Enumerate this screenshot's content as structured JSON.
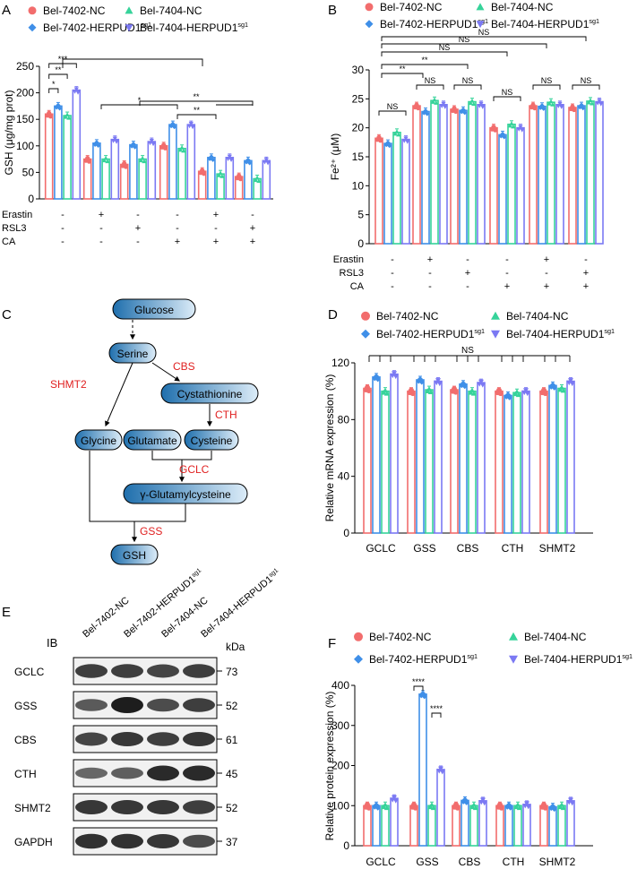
{
  "colors": {
    "c1": "#f26d6d",
    "c2": "#3f8fe8",
    "c3": "#36d39a",
    "c4": "#7b79f3",
    "sig": "#000000",
    "flowRed": "#e02020"
  },
  "groups": [
    "Bel-7402-NC",
    "Bel-7402-HERPUD1",
    "Bel-7404-NC",
    "Bel-7404-HERPUD1"
  ],
  "sup": "sg1",
  "pm": [
    "+",
    "-"
  ],
  "panelA": {
    "letter": "A",
    "ylabel": "GSH (μg/mg prot)",
    "rows": [
      "Erastin",
      "RSL3",
      "CA"
    ],
    "conds": [
      [
        "-",
        "-",
        "-"
      ],
      [
        "+",
        "-",
        "-"
      ],
      [
        "-",
        "+",
        "-"
      ],
      [
        "-",
        "-",
        "+"
      ],
      [
        "+",
        "-",
        "+"
      ],
      [
        "-",
        "+",
        "+"
      ]
    ],
    "sigLabels": [
      "*",
      "**",
      "***",
      "*",
      "**",
      "**"
    ],
    "chart_data": {
      "type": "bar",
      "ylim": [
        0,
        250
      ],
      "ticks": [
        0,
        50,
        100,
        150,
        200,
        250
      ],
      "means": [
        [
          160,
          175,
          157,
          205
        ],
        [
          75,
          105,
          75,
          112
        ],
        [
          65,
          102,
          75,
          108
        ],
        [
          100,
          140,
          95,
          140
        ],
        [
          52,
          78,
          47,
          78
        ],
        [
          42,
          72,
          38,
          72
        ]
      ]
    }
  },
  "panelB": {
    "letter": "B",
    "ylabel": "Fe²⁺ (μM)",
    "rows": [
      "Erastin",
      "RSL3",
      "CA"
    ],
    "conds": [
      [
        "-",
        "-",
        "-"
      ],
      [
        "+",
        "-",
        "-"
      ],
      [
        "-",
        "+",
        "-"
      ],
      [
        "-",
        "-",
        "+"
      ],
      [
        "+",
        "-",
        "+"
      ],
      [
        "-",
        "+",
        "+"
      ]
    ],
    "sigLabels": [
      "NS",
      "NS",
      "NS",
      "NS",
      "NS",
      "NS",
      "**",
      "**",
      "NS",
      "NS",
      "NS"
    ],
    "chart_data": {
      "type": "bar",
      "ylim": [
        0,
        30
      ],
      "ticks": [
        0,
        5,
        10,
        15,
        20,
        25,
        30
      ],
      "means": [
        [
          18.2,
          17.3,
          19.2,
          18
        ],
        [
          23.8,
          22.8,
          24.7,
          24
        ],
        [
          23.2,
          23,
          24.5,
          24
        ],
        [
          20,
          18.8,
          20.6,
          20
        ],
        [
          23.8,
          23.7,
          24.4,
          24
        ],
        [
          23.5,
          23.8,
          24.6,
          24.5
        ]
      ]
    }
  },
  "panelC": {
    "letter": "C",
    "nodes": {
      "glucose": "Glucose",
      "serine": "Serine",
      "cystathionine": "Cystathionine",
      "glycine": "Glycine",
      "glutamate": "Glutamate",
      "cysteine": "Cysteine",
      "gglu": "γ-Glutamylcysteine",
      "gsh": "GSH"
    },
    "enzymes": {
      "cbs": "CBS",
      "shmt2": "SHMT2",
      "cth": "CTH",
      "gclc": "GCLC",
      "gss": "GSS"
    }
  },
  "panelD": {
    "letter": "D",
    "ylabel": "Relative mRNA expression (%)",
    "ns": "NS",
    "chart_data": {
      "type": "bar",
      "categories": [
        "GCLC",
        "GSS",
        "CBS",
        "CTH",
        "SHMT2"
      ],
      "ylim": [
        0,
        120
      ],
      "ticks": [
        0,
        40,
        80,
        120
      ],
      "means": [
        [
          102,
          110,
          100,
          112
        ],
        [
          100,
          108,
          101,
          107
        ],
        [
          101,
          105,
          100,
          106
        ],
        [
          100,
          97,
          99,
          100
        ],
        [
          100,
          104,
          102,
          107
        ]
      ]
    }
  },
  "panelE": {
    "letter": "E",
    "ib": "IB",
    "kda": "kDa",
    "lanes": [
      "Bel-7402-NC",
      "Bel-7402-HERPUD1",
      "Bel-7404-NC",
      "Bel-7404-HERPUD1"
    ],
    "proteins": [
      {
        "name": "GCLC",
        "kda": "73"
      },
      {
        "name": "GSS",
        "kda": "52"
      },
      {
        "name": "CBS",
        "kda": "61"
      },
      {
        "name": "CTH",
        "kda": "45"
      },
      {
        "name": "SHMT2",
        "kda": "52"
      },
      {
        "name": "GAPDH",
        "kda": "37"
      }
    ]
  },
  "panelF": {
    "letter": "F",
    "ylabel": "Relative protein expression (%)",
    "sig": "****",
    "chart_data": {
      "type": "bar",
      "categories": [
        "GCLC",
        "GSS",
        "CBS",
        "CTH",
        "SHMT2"
      ],
      "ylim": [
        0,
        400
      ],
      "ticks": [
        0,
        100,
        200,
        300,
        400
      ],
      "means": [
        [
          100,
          100,
          100,
          118
        ],
        [
          100,
          378,
          100,
          190
        ],
        [
          100,
          113,
          100,
          112
        ],
        [
          100,
          100,
          100,
          103
        ],
        [
          100,
          97,
          100,
          112
        ]
      ]
    }
  }
}
